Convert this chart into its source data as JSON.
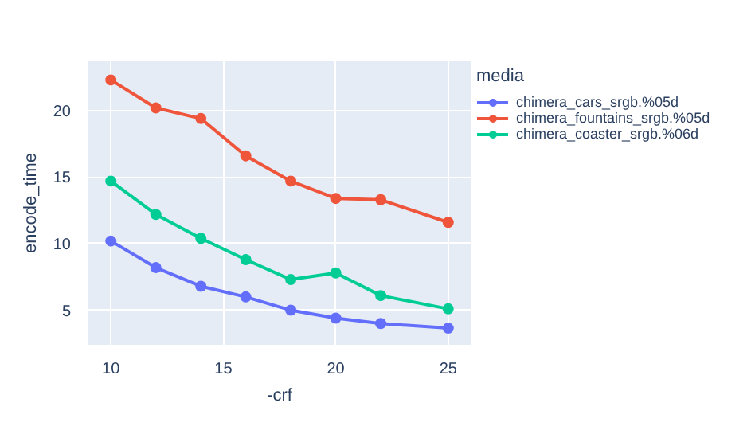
{
  "chart_data": {
    "type": "line",
    "xlabel": "-crf",
    "ylabel": "encode_time",
    "legend_title": "media",
    "x": [
      10,
      12,
      14,
      16,
      18,
      20,
      22,
      25
    ],
    "series": [
      {
        "name": "chimera_cars_srgb.%05d",
        "color": "#636efa",
        "values": [
          10.2,
          8.2,
          6.8,
          6.0,
          5.0,
          4.4,
          4.0,
          3.65
        ]
      },
      {
        "name": "chimera_fountains_srgb.%05d",
        "color": "#ef553b",
        "values": [
          22.3,
          20.2,
          19.4,
          16.6,
          14.7,
          13.4,
          13.3,
          11.6
        ]
      },
      {
        "name": "chimera_coaster_srgb.%06d",
        "color": "#00cc96",
        "values": [
          14.7,
          12.2,
          10.4,
          8.8,
          7.3,
          7.8,
          6.1,
          5.1
        ]
      }
    ],
    "xlim": [
      9,
      26
    ],
    "ylim": [
      2.4,
      23.7
    ],
    "xticks": [
      10,
      15,
      20,
      25
    ],
    "yticks": [
      5,
      10,
      15,
      20
    ],
    "grid": true,
    "legend": "right",
    "marker": "circle",
    "line_style": "solid"
  }
}
